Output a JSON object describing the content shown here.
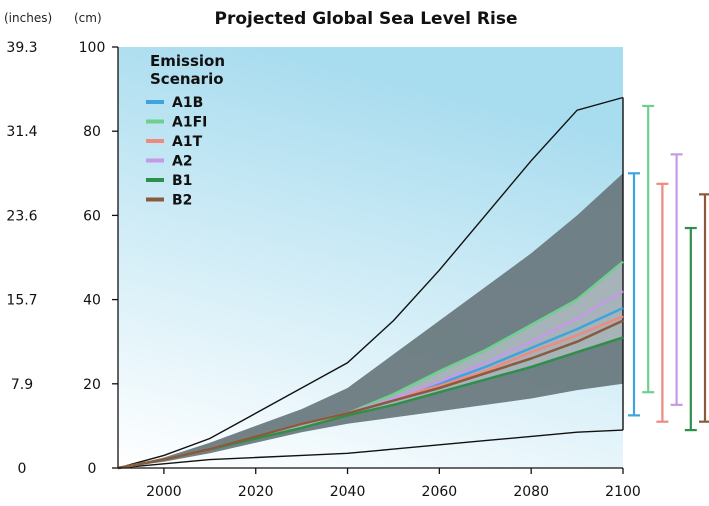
{
  "chart_data": {
    "type": "line",
    "title": "Projected Global Sea Level Rise",
    "unit_inches_label": "(inches)",
    "unit_cm_label": "(cm)",
    "x_ticks": [
      "2000",
      "2020",
      "2040",
      "2060",
      "2080",
      "2100"
    ],
    "y_ticks_cm": [
      "0",
      "20",
      "40",
      "60",
      "80",
      "100"
    ],
    "y_ticks_inches": [
      "0",
      "7.9",
      "15.7",
      "23.6",
      "31.4",
      "39.3"
    ],
    "xlim": [
      1990,
      2100
    ],
    "ylim": [
      0,
      100
    ],
    "background_gradient": [
      "#ffffff",
      "#a8dcef"
    ],
    "legend": {
      "title_line1": "Emission",
      "title_line2": "Scenario",
      "placement": "top-left"
    },
    "x": [
      1990,
      2000,
      2010,
      2020,
      2030,
      2040,
      2050,
      2060,
      2070,
      2080,
      2090,
      2100
    ],
    "series": [
      {
        "name": "A1B",
        "color": "#3fa3e0",
        "values": [
          0,
          2,
          4.5,
          7.5,
          10.5,
          13,
          16.5,
          20,
          24,
          28.5,
          33,
          38
        ]
      },
      {
        "name": "A1FI",
        "color": "#6fcf8f",
        "values": [
          0,
          2,
          4.5,
          7.5,
          10.5,
          13,
          17.5,
          23,
          28,
          34,
          40,
          49
        ]
      },
      {
        "name": "A1T",
        "color": "#ee8a80",
        "values": [
          0,
          2,
          4.5,
          7.5,
          10.5,
          13,
          16.5,
          19.5,
          23,
          27.5,
          31.5,
          36
        ]
      },
      {
        "name": "A2",
        "color": "#c49ae6",
        "values": [
          0,
          2,
          4.5,
          7.5,
          10.5,
          13,
          16.5,
          20.5,
          25,
          30,
          35.5,
          42
        ]
      },
      {
        "name": "B1",
        "color": "#2f8f4a",
        "values": [
          0,
          2,
          4.5,
          7,
          9.5,
          12.5,
          15,
          18,
          21,
          24,
          27.5,
          31
        ]
      },
      {
        "name": "B2",
        "color": "#8a5a3c",
        "values": [
          0,
          2,
          4.5,
          7.5,
          10.5,
          13,
          16,
          19,
          22.5,
          26,
          30,
          35
        ]
      }
    ],
    "envelope": {
      "color": "#6a7a7f",
      "lower": [
        0,
        1.5,
        3.5,
        6,
        8.5,
        10.5,
        12,
        13.5,
        15,
        16.5,
        18.5,
        20
      ],
      "upper": [
        0,
        2.5,
        6,
        10,
        14,
        19,
        27,
        35,
        43,
        51,
        60,
        70
      ]
    },
    "outer_range": {
      "color": "#111111",
      "lower": [
        0,
        1,
        2,
        2.5,
        3,
        3.5,
        4.5,
        5.5,
        6.5,
        7.5,
        8.5,
        9
      ],
      "upper": [
        0,
        3,
        7,
        13,
        19,
        25,
        35,
        47,
        60,
        73,
        85,
        88
      ]
    },
    "range_bars_2100": [
      {
        "scenario": "A1B",
        "color": "#3fa3e0",
        "low": 12.5,
        "high": 70
      },
      {
        "scenario": "A1FI",
        "color": "#6fcf8f",
        "low": 18,
        "high": 86
      },
      {
        "scenario": "A1T",
        "color": "#ee8a80",
        "low": 11,
        "high": 67.5
      },
      {
        "scenario": "A2",
        "color": "#c49ae6",
        "low": 15,
        "high": 74.5
      },
      {
        "scenario": "B1",
        "color": "#2f8f4a",
        "low": 9,
        "high": 57
      },
      {
        "scenario": "B2",
        "color": "#8a5a3c",
        "low": 11,
        "high": 65
      }
    ]
  }
}
